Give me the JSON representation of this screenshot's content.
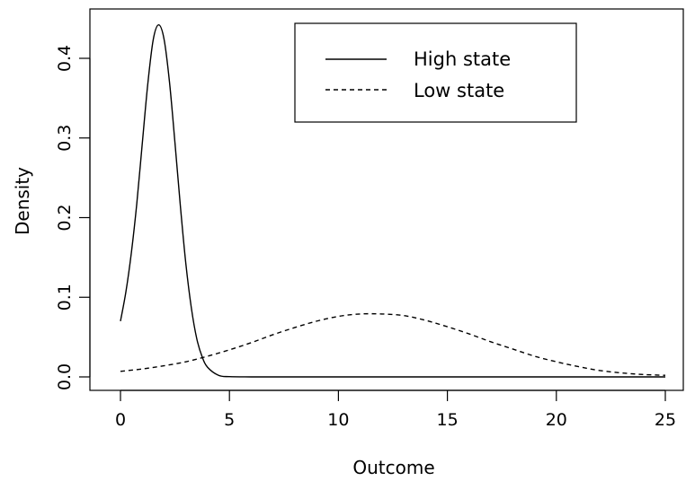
{
  "chart_data": {
    "type": "line",
    "xlabel": "Outcome",
    "ylabel": "Density",
    "xlim": [
      0,
      25
    ],
    "ylim": [
      0,
      0.45
    ],
    "x_ticks": [
      0,
      5,
      10,
      15,
      20,
      25
    ],
    "x_tick_labels": [
      "0",
      "5",
      "10",
      "15",
      "20",
      "25"
    ],
    "y_ticks": [
      0.0,
      0.1,
      0.2,
      0.3,
      0.4
    ],
    "y_tick_labels": [
      "0.0",
      "0.1",
      "0.2",
      "0.3",
      "0.4"
    ],
    "legend_position": "top-center",
    "grid": false,
    "series": [
      {
        "name": "High state",
        "line_style": "solid",
        "x": [
          0,
          0.25,
          0.5,
          0.75,
          1,
          1.25,
          1.5,
          1.75,
          2,
          2.25,
          2.5,
          2.75,
          3,
          3.25,
          3.5,
          3.75,
          4,
          4.5,
          5,
          6,
          8,
          10,
          15,
          20,
          25
        ],
        "y": [
          0.07,
          0.107,
          0.156,
          0.218,
          0.293,
          0.367,
          0.423,
          0.442,
          0.424,
          0.37,
          0.294,
          0.214,
          0.142,
          0.087,
          0.048,
          0.025,
          0.012,
          0.002,
          0.0003,
          0.0,
          0.0,
          0.0,
          0.0,
          0.0,
          0.0
        ]
      },
      {
        "name": "Low state",
        "line_style": "dashed",
        "x": [
          0,
          1,
          2,
          3,
          4,
          5,
          6,
          7,
          8,
          9,
          10,
          11,
          12,
          13,
          14,
          15,
          16,
          17,
          18,
          19,
          20,
          21,
          22,
          23,
          24,
          25
        ],
        "y": [
          0.007,
          0.01,
          0.014,
          0.019,
          0.026,
          0.034,
          0.043,
          0.053,
          0.062,
          0.07,
          0.076,
          0.079,
          0.079,
          0.077,
          0.071,
          0.063,
          0.054,
          0.044,
          0.035,
          0.026,
          0.019,
          0.013,
          0.008,
          0.005,
          0.003,
          0.002
        ]
      }
    ]
  }
}
